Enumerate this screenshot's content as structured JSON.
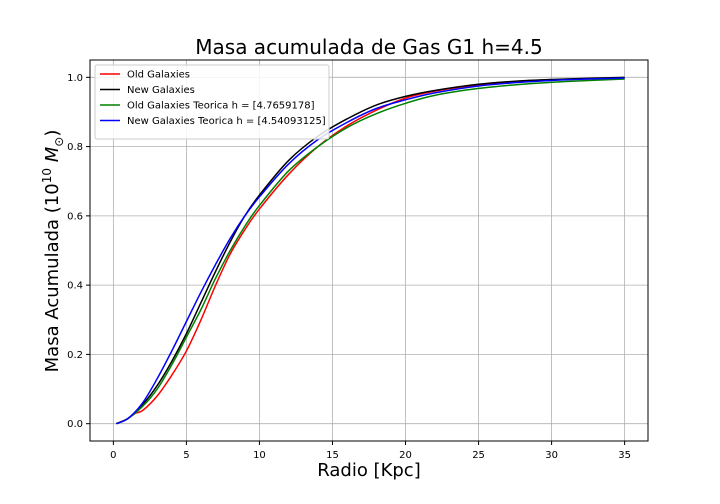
{
  "chart_data": {
    "type": "line",
    "title": "Masa acumulada de Gas G1 h=4.5",
    "xlabel": "Radio [Kpc]",
    "ylabel": {
      "prefix": "Masa Acumulada (10",
      "exponent": "10",
      "unit": "M",
      "subscript": "⊙",
      "suffix": ")"
    },
    "xlim": [
      -1.6,
      36.6
    ],
    "ylim": [
      -0.05,
      1.05
    ],
    "xticks": [
      0,
      5,
      10,
      15,
      20,
      25,
      30,
      35
    ],
    "xtick_labels": [
      "0",
      "5",
      "10",
      "15",
      "20",
      "25",
      "30",
      "35"
    ],
    "yticks": [
      0.0,
      0.2,
      0.4,
      0.6,
      0.8,
      1.0
    ],
    "ytick_labels": [
      "0.0",
      "0.2",
      "0.4",
      "0.6",
      "0.8",
      "1.0"
    ],
    "grid": true,
    "legend_position": "top-left",
    "series": [
      {
        "name": "Old Galaxies",
        "color": "#ff0000",
        "x": [
          0.2,
          1.0,
          1.5,
          2.0,
          3.0,
          4.0,
          5.0,
          6.0,
          7.0,
          8.0,
          9.0,
          10.0,
          12.0,
          14.0,
          16.0,
          18.0,
          20.0,
          22.0,
          25.0,
          28.0,
          31.0,
          35.0
        ],
        "y": [
          0.0,
          0.015,
          0.03,
          0.038,
          0.08,
          0.14,
          0.21,
          0.3,
          0.4,
          0.49,
          0.56,
          0.62,
          0.72,
          0.8,
          0.86,
          0.905,
          0.94,
          0.96,
          0.978,
          0.988,
          0.994,
          0.998
        ]
      },
      {
        "name": "New Galaxies",
        "color": "#000000",
        "x": [
          0.2,
          1.0,
          2.0,
          3.0,
          4.0,
          5.0,
          6.0,
          7.0,
          8.0,
          9.0,
          10.0,
          12.0,
          14.0,
          16.0,
          18.0,
          20.0,
          22.0,
          25.0,
          28.0,
          31.0,
          35.0
        ],
        "y": [
          0.0,
          0.015,
          0.055,
          0.11,
          0.18,
          0.26,
          0.35,
          0.44,
          0.525,
          0.6,
          0.66,
          0.76,
          0.83,
          0.88,
          0.92,
          0.945,
          0.962,
          0.98,
          0.99,
          0.995,
          1.0
        ]
      },
      {
        "name": "Old Galaxies Teorica h = [4.7659178]",
        "color": "#008000",
        "x": [
          0.2,
          1.0,
          2.0,
          3.0,
          4.0,
          5.0,
          6.0,
          7.0,
          8.0,
          9.0,
          10.0,
          12.0,
          14.0,
          16.0,
          18.0,
          20.0,
          22.0,
          25.0,
          28.0,
          31.0,
          35.0
        ],
        "y": [
          0.0,
          0.015,
          0.05,
          0.1,
          0.17,
          0.25,
          0.33,
          0.42,
          0.5,
          0.57,
          0.63,
          0.73,
          0.8,
          0.855,
          0.895,
          0.925,
          0.948,
          0.968,
          0.98,
          0.988,
          0.995
        ]
      },
      {
        "name": "New Galaxies Teorica h = [4.54093125]",
        "color": "#0000ff",
        "x": [
          0.2,
          1.0,
          2.0,
          3.0,
          4.0,
          5.0,
          6.0,
          7.0,
          8.0,
          9.0,
          10.0,
          12.0,
          14.0,
          16.0,
          18.0,
          20.0,
          22.0,
          25.0,
          28.0,
          31.0,
          35.0
        ],
        "y": [
          0.0,
          0.015,
          0.06,
          0.13,
          0.21,
          0.295,
          0.38,
          0.46,
          0.535,
          0.6,
          0.655,
          0.75,
          0.82,
          0.87,
          0.91,
          0.935,
          0.955,
          0.975,
          0.986,
          0.993,
          0.998
        ]
      }
    ]
  }
}
